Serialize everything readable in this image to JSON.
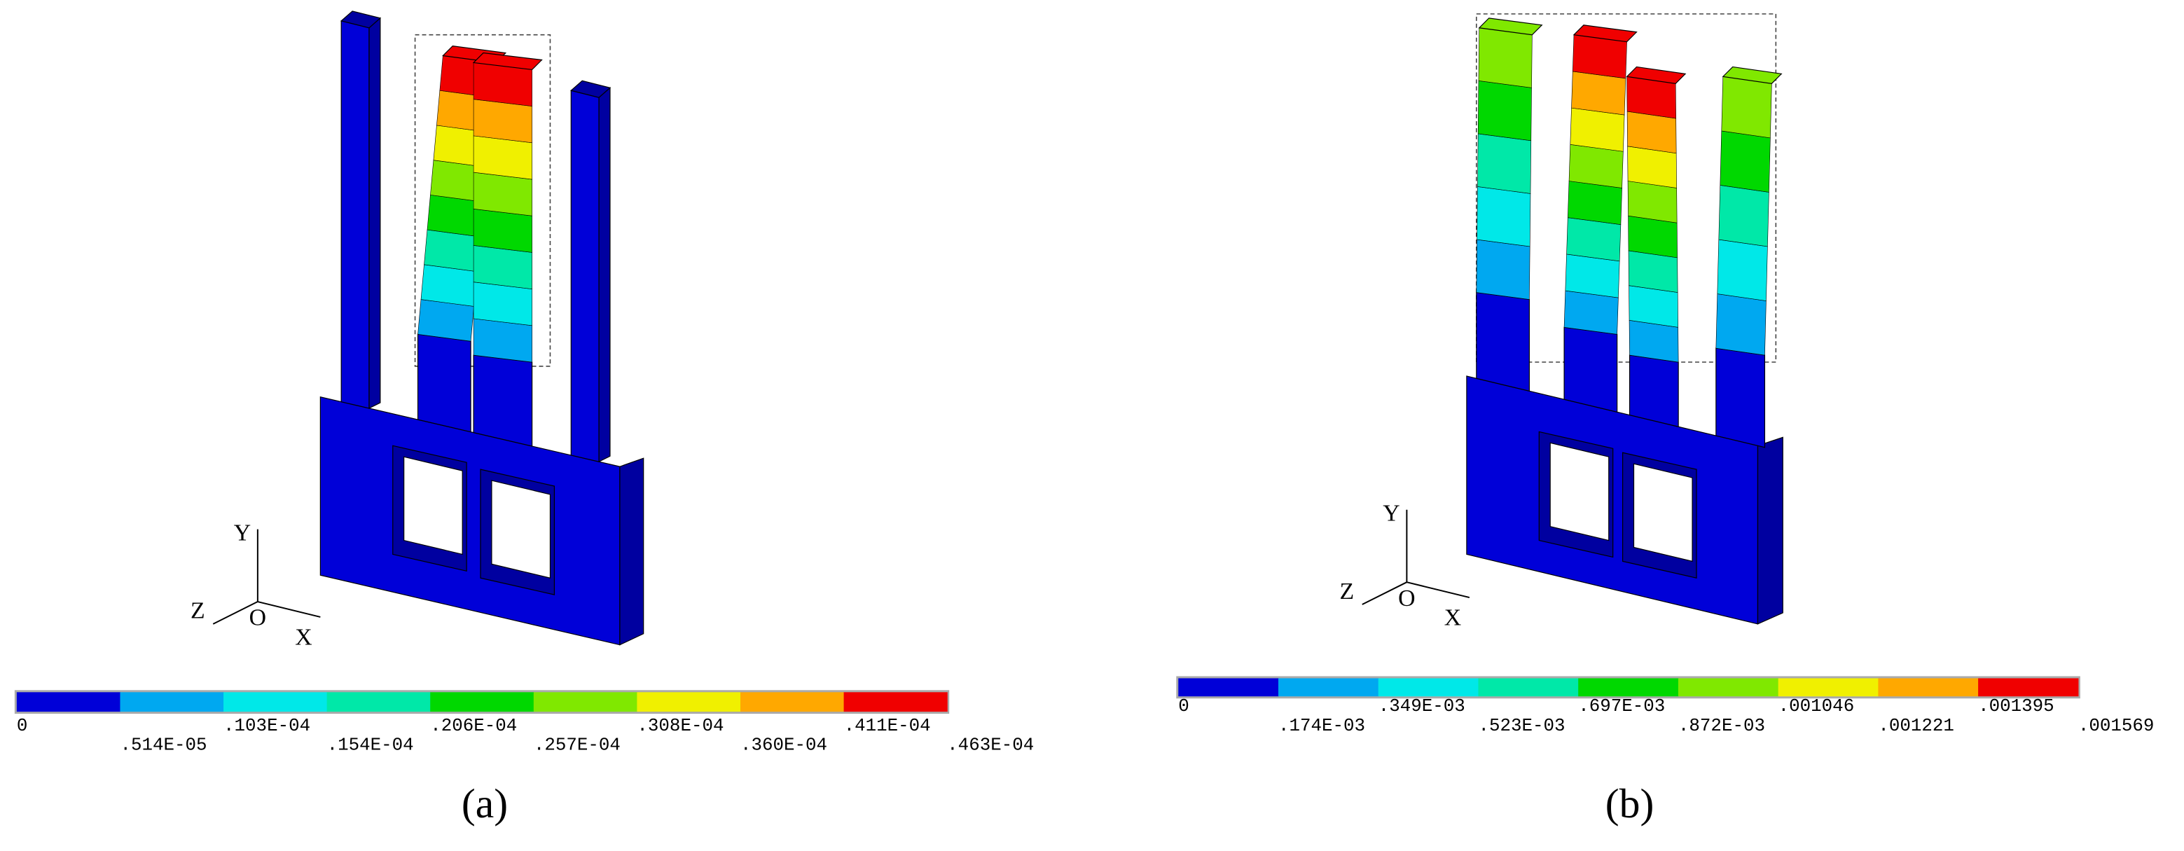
{
  "colors": [
    "#0000d8",
    "#00a8f0",
    "#00e8e8",
    "#00e8a8",
    "#00d800",
    "#80e800",
    "#f0f000",
    "#ffa800",
    "#f00000"
  ],
  "panels": [
    {
      "caption": "(a)",
      "axes": {
        "y": "Y",
        "z": "Z",
        "o": "O",
        "x": "X"
      },
      "legend_labels": [
        "0",
        ".514E-05",
        ".103E-04",
        ".154E-04",
        ".206E-04",
        ".257E-04",
        ".308E-04",
        ".360E-04",
        ".411E-04",
        ".463E-04"
      ]
    },
    {
      "caption": "(b)",
      "axes": {
        "y": "Y",
        "z": "Z",
        "o": "O",
        "x": "X"
      },
      "legend_labels": [
        "0",
        ".174E-03",
        ".349E-03",
        ".523E-03",
        ".697E-03",
        ".872E-03",
        ".001046",
        ".001221",
        ".001395",
        ".001569"
      ]
    }
  ]
}
